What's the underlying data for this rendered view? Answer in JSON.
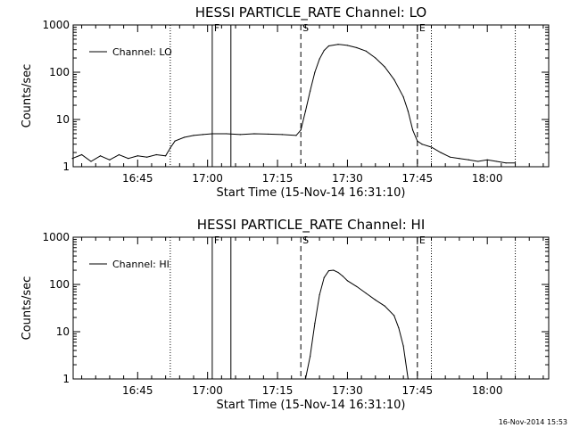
{
  "footer": "16-Nov-2014 15:53",
  "chart_data": [
    {
      "type": "line",
      "title": "HESSI PARTICLE_RATE Channel: LO",
      "xlabel": "Start Time (15-Nov-14 16:31:10)",
      "ylabel": "Counts/sec",
      "yscale": "log",
      "ylim": [
        1,
        1000
      ],
      "xlim": [
        "16:31:10",
        "18:13:10"
      ],
      "x_ticks": [
        "16:45",
        "17:00",
        "17:15",
        "17:30",
        "17:45",
        "18:00"
      ],
      "y_ticks": [
        "1",
        "10",
        "100",
        "1000"
      ],
      "legend": "top-left",
      "markers": [
        {
          "time": "16:52",
          "style": "dotted",
          "label": ""
        },
        {
          "time": "17:01",
          "style": "solid",
          "label": "F"
        },
        {
          "time": "17:05",
          "style": "solid",
          "label": ""
        },
        {
          "time": "17:20",
          "style": "dashed",
          "label": "S"
        },
        {
          "time": "17:45",
          "style": "dashed",
          "label": "E"
        },
        {
          "time": "17:48",
          "style": "dotted",
          "label": ""
        },
        {
          "time": "18:06",
          "style": "dotted",
          "label": ""
        }
      ],
      "series": [
        {
          "name": "Channel: LO",
          "x": [
            "16:31",
            "16:33",
            "16:35",
            "16:37",
            "16:39",
            "16:41",
            "16:43",
            "16:45",
            "16:47",
            "16:49",
            "16:51",
            "16:52",
            "16:53",
            "16:55",
            "16:57",
            "16:59",
            "17:01",
            "17:04",
            "17:07",
            "17:10",
            "17:13",
            "17:16",
            "17:19",
            "17:20",
            "17:21",
            "17:22",
            "17:23",
            "17:24",
            "17:25",
            "17:26",
            "17:28",
            "17:30",
            "17:32",
            "17:34",
            "17:36",
            "17:38",
            "17:40",
            "17:42",
            "17:43",
            "17:44",
            "17:45",
            "17:46",
            "17:48",
            "17:50",
            "17:52",
            "17:54",
            "17:56",
            "17:58",
            "18:00",
            "18:02",
            "18:04",
            "18:06"
          ],
          "values": [
            1.5,
            1.8,
            1.3,
            1.7,
            1.4,
            1.8,
            1.5,
            1.7,
            1.6,
            1.8,
            1.7,
            2.5,
            3.5,
            4.2,
            4.6,
            4.8,
            5.0,
            5.0,
            4.8,
            5.0,
            4.9,
            4.8,
            4.6,
            6,
            15,
            40,
            100,
            190,
            290,
            360,
            390,
            370,
            330,
            280,
            200,
            130,
            70,
            30,
            15,
            6,
            3.5,
            3,
            2.6,
            2,
            1.6,
            1.5,
            1.4,
            1.3,
            1.4,
            1.3,
            1.2,
            1.2
          ]
        }
      ]
    },
    {
      "type": "line",
      "title": "HESSI PARTICLE_RATE Channel: HI",
      "xlabel": "Start Time (15-Nov-14 16:31:10)",
      "ylabel": "Counts/sec",
      "yscale": "log",
      "ylim": [
        1,
        1000
      ],
      "xlim": [
        "16:31:10",
        "18:13:10"
      ],
      "x_ticks": [
        "16:45",
        "17:00",
        "17:15",
        "17:30",
        "17:45",
        "18:00"
      ],
      "y_ticks": [
        "1",
        "10",
        "100",
        "1000"
      ],
      "legend": "top-left",
      "markers": [
        {
          "time": "16:52",
          "style": "dotted",
          "label": ""
        },
        {
          "time": "17:01",
          "style": "solid",
          "label": "F"
        },
        {
          "time": "17:05",
          "style": "solid",
          "label": ""
        },
        {
          "time": "17:20",
          "style": "dashed",
          "label": "S"
        },
        {
          "time": "17:45",
          "style": "dashed",
          "label": "E"
        },
        {
          "time": "17:48",
          "style": "dotted",
          "label": ""
        },
        {
          "time": "18:06",
          "style": "dotted",
          "label": ""
        }
      ],
      "series": [
        {
          "name": "Channel: HI",
          "x": [
            "17:21",
            "17:22",
            "17:23",
            "17:24",
            "17:25",
            "17:26",
            "17:27",
            "17:28",
            "17:29",
            "17:30",
            "17:32",
            "17:34",
            "17:36",
            "17:38",
            "17:40",
            "17:41",
            "17:42",
            "17:43"
          ],
          "values": [
            1,
            3,
            15,
            60,
            140,
            195,
            200,
            180,
            150,
            120,
            90,
            65,
            47,
            35,
            22,
            12,
            5,
            1
          ]
        }
      ]
    }
  ]
}
